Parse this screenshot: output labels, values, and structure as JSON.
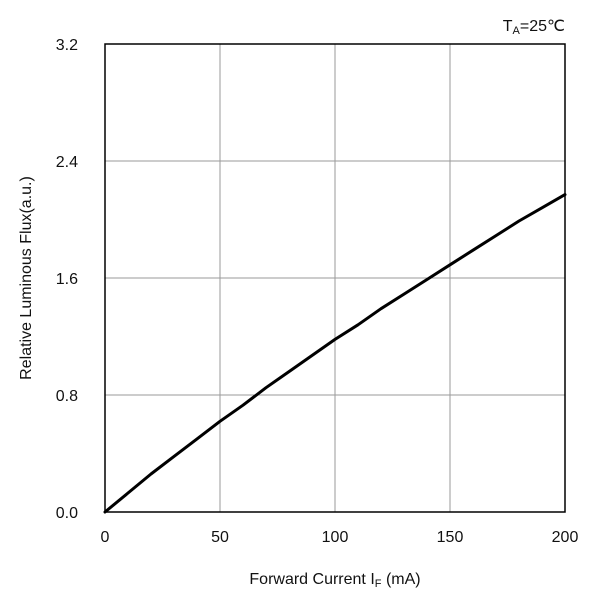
{
  "chart_data": {
    "type": "line",
    "title": "",
    "annotation": {
      "prefix": "T",
      "subscript": "A",
      "suffix": "=25℃"
    },
    "xlabel": {
      "prefix": "Forward Current  I",
      "subscript": "F",
      "suffix": " (mA)"
    },
    "ylabel": "Relative Luminous Flux(a.u.)",
    "xlim": [
      0,
      200
    ],
    "ylim": [
      0.0,
      3.2
    ],
    "xticks": [
      0,
      50,
      100,
      150,
      200
    ],
    "xtick_labels": [
      "0",
      "50",
      "100",
      "150",
      "200"
    ],
    "yticks": [
      0.0,
      0.8,
      1.6,
      2.4,
      3.2
    ],
    "ytick_labels": [
      "0.0",
      "0.8",
      "1.6",
      "2.4",
      "3.2"
    ],
    "grid": true,
    "legend": "none",
    "series": [
      {
        "color": "#000000",
        "x": [
          0,
          10,
          20,
          30,
          40,
          50,
          60,
          70,
          80,
          90,
          100,
          110,
          120,
          130,
          140,
          150,
          160,
          170,
          180,
          190,
          200
        ],
        "y": [
          0.0,
          0.13,
          0.26,
          0.38,
          0.5,
          0.62,
          0.73,
          0.85,
          0.96,
          1.07,
          1.18,
          1.28,
          1.39,
          1.49,
          1.59,
          1.69,
          1.79,
          1.89,
          1.99,
          2.08,
          2.17
        ]
      }
    ]
  }
}
